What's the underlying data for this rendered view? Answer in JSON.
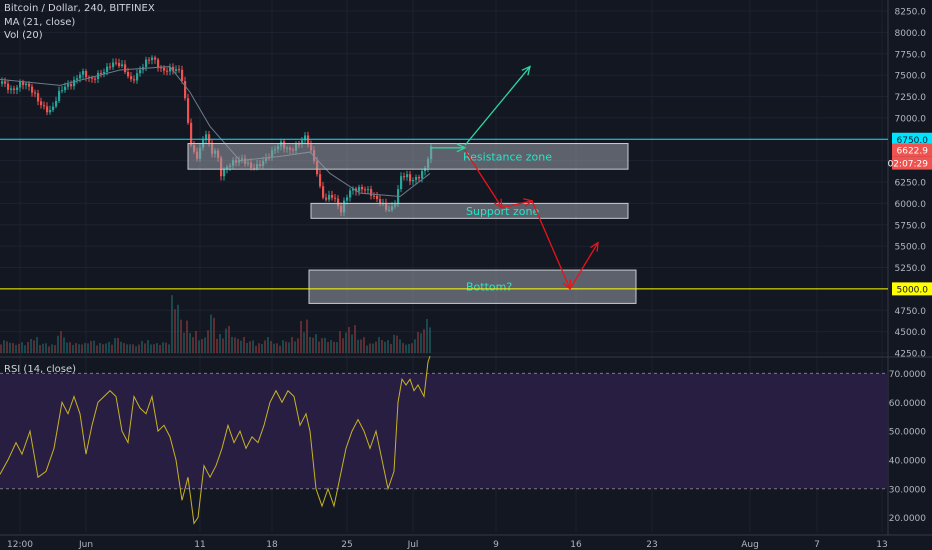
{
  "legend": {
    "symbol": "Bitcoin / Dollar, 240, BITFINEX",
    "ma": "MA (21, close)",
    "vol": "Vol (20)",
    "rsi": "RSI (14, close)"
  },
  "colors": {
    "background": "#131722",
    "up": "#26a69a",
    "down": "#ef5350",
    "resistance_line": "#00e5ff",
    "bottom_line": "#ffff00",
    "zone_fill": "#9a9ea8",
    "zone_text": "#26e6c8",
    "arrow_up": "#2fd6a0",
    "arrow_down": "#e8131b",
    "rsi_line": "#c9b325",
    "rsi_band": "#2a1f45"
  },
  "price_axis": {
    "min": 4250,
    "max": 8250,
    "ticks": [
      "8250.0",
      "8000.0",
      "7750.0",
      "7500.0",
      "7250.0",
      "7000.0",
      "6750.0",
      "6500.0",
      "6250.0",
      "6000.0",
      "5750.0",
      "5500.0",
      "5250.0",
      "5000.0",
      "4750.0",
      "4500.0",
      "4250.0"
    ]
  },
  "price_badges": [
    {
      "text": "6750.0",
      "value": 6750,
      "bg": "#00e5ff",
      "fg": "#131722"
    },
    {
      "text": "6622.9",
      "value": 6622.9,
      "bg": "#ef5350",
      "fg": "#ffffff"
    },
    {
      "text": "02:07:29",
      "value": 6500,
      "bg": "#ef5350",
      "fg": "#ffffff"
    },
    {
      "text": "5000.0",
      "value": 5000,
      "bg": "#ffff00",
      "fg": "#131722"
    }
  ],
  "time_axis": {
    "labels": [
      "12:00",
      "Jun",
      "11",
      "18",
      "25",
      "Jul",
      "9",
      "16",
      "23",
      "Aug",
      "7",
      "13"
    ]
  },
  "rsi_axis": {
    "min": 15,
    "max": 75,
    "ticks": [
      "70.0000",
      "60.0000",
      "50.0000",
      "40.0000",
      "30.0000",
      "20.0000"
    ],
    "overbought": 70,
    "oversold": 30
  },
  "annotations": {
    "resistance": {
      "label": "Resistance zone",
      "low": 6400,
      "high": 6700,
      "level": 6750
    },
    "support": {
      "label": "Support zone",
      "low": 5825,
      "high": 6000
    },
    "bottom": {
      "label": "Bottom?",
      "low": 4830,
      "high": 5220,
      "level": 5000
    }
  },
  "chart_data": {
    "type": "candlestick",
    "title": "Bitcoin / Dollar, 240, BITFINEX",
    "indicators": [
      "MA (21, close)",
      "Vol (20)",
      "RSI (14, close)"
    ],
    "ylim": [
      4250,
      8250
    ],
    "rsi_ylim": [
      15,
      75
    ],
    "price_path": [
      [
        0,
        7400
      ],
      [
        10,
        7350
      ],
      [
        20,
        7420
      ],
      [
        30,
        7300
      ],
      [
        40,
        7180
      ],
      [
        50,
        7080
      ],
      [
        60,
        7300
      ],
      [
        70,
        7420
      ],
      [
        80,
        7550
      ],
      [
        90,
        7400
      ],
      [
        100,
        7550
      ],
      [
        110,
        7650
      ],
      [
        120,
        7580
      ],
      [
        130,
        7450
      ],
      [
        140,
        7600
      ],
      [
        150,
        7680
      ],
      [
        160,
        7580
      ],
      [
        170,
        7600
      ],
      [
        180,
        7500
      ],
      [
        185,
        7100
      ],
      [
        190,
        6700
      ],
      [
        195,
        6550
      ],
      [
        200,
        6700
      ],
      [
        205,
        6820
      ],
      [
        210,
        6550
      ],
      [
        215,
        6600
      ],
      [
        220,
        6350
      ],
      [
        225,
        6450
      ],
      [
        230,
        6500
      ],
      [
        240,
        6480
      ],
      [
        250,
        6420
      ],
      [
        260,
        6500
      ],
      [
        270,
        6550
      ],
      [
        280,
        6700
      ],
      [
        290,
        6650
      ],
      [
        300,
        6700
      ],
      [
        305,
        6750
      ],
      [
        310,
        6600
      ],
      [
        315,
        6450
      ],
      [
        320,
        6150
      ],
      [
        325,
        6050
      ],
      [
        330,
        6080
      ],
      [
        335,
        5980
      ],
      [
        340,
        5900
      ],
      [
        345,
        6100
      ],
      [
        350,
        6200
      ],
      [
        360,
        6150
      ],
      [
        370,
        6100
      ],
      [
        380,
        6050
      ],
      [
        385,
        5950
      ],
      [
        390,
        5900
      ],
      [
        395,
        6000
      ],
      [
        400,
        6300
      ],
      [
        405,
        6350
      ],
      [
        410,
        6300
      ],
      [
        420,
        6320
      ],
      [
        425,
        6400
      ],
      [
        428,
        6550
      ],
      [
        430,
        6622
      ]
    ],
    "ma_path": [
      [
        0,
        7450
      ],
      [
        60,
        7380
      ],
      [
        120,
        7560
      ],
      [
        170,
        7600
      ],
      [
        190,
        7300
      ],
      [
        210,
        6900
      ],
      [
        240,
        6500
      ],
      [
        280,
        6550
      ],
      [
        310,
        6600
      ],
      [
        330,
        6350
      ],
      [
        360,
        6120
      ],
      [
        400,
        6080
      ],
      [
        430,
        6350
      ]
    ],
    "rsi_path": [
      [
        0,
        35
      ],
      [
        8,
        40
      ],
      [
        16,
        46
      ],
      [
        22,
        42
      ],
      [
        30,
        50
      ],
      [
        38,
        34
      ],
      [
        46,
        36
      ],
      [
        54,
        44
      ],
      [
        62,
        60
      ],
      [
        68,
        56
      ],
      [
        74,
        62
      ],
      [
        80,
        56
      ],
      [
        86,
        42
      ],
      [
        92,
        52
      ],
      [
        98,
        60
      ],
      [
        104,
        62
      ],
      [
        110,
        64
      ],
      [
        116,
        62
      ],
      [
        122,
        50
      ],
      [
        128,
        46
      ],
      [
        134,
        62
      ],
      [
        140,
        58
      ],
      [
        146,
        56
      ],
      [
        152,
        62
      ],
      [
        158,
        50
      ],
      [
        164,
        52
      ],
      [
        170,
        48
      ],
      [
        176,
        40
      ],
      [
        182,
        26
      ],
      [
        188,
        34
      ],
      [
        194,
        18
      ],
      [
        198,
        20
      ],
      [
        204,
        38
      ],
      [
        210,
        34
      ],
      [
        216,
        38
      ],
      [
        222,
        44
      ],
      [
        228,
        52
      ],
      [
        234,
        46
      ],
      [
        240,
        50
      ],
      [
        246,
        44
      ],
      [
        252,
        48
      ],
      [
        258,
        46
      ],
      [
        264,
        52
      ],
      [
        270,
        60
      ],
      [
        276,
        64
      ],
      [
        282,
        60
      ],
      [
        288,
        64
      ],
      [
        294,
        62
      ],
      [
        300,
        52
      ],
      [
        306,
        56
      ],
      [
        310,
        50
      ],
      [
        316,
        30
      ],
      [
        322,
        24
      ],
      [
        328,
        30
      ],
      [
        334,
        24
      ],
      [
        340,
        34
      ],
      [
        346,
        44
      ],
      [
        352,
        50
      ],
      [
        358,
        54
      ],
      [
        364,
        50
      ],
      [
        370,
        44
      ],
      [
        376,
        50
      ],
      [
        382,
        40
      ],
      [
        388,
        30
      ],
      [
        394,
        36
      ],
      [
        398,
        60
      ],
      [
        402,
        68
      ],
      [
        406,
        66
      ],
      [
        410,
        68
      ],
      [
        414,
        64
      ],
      [
        418,
        66
      ],
      [
        424,
        62
      ],
      [
        428,
        74
      ],
      [
        430,
        76
      ]
    ],
    "volume_relative": [
      0.15,
      0.1,
      0.12,
      0.2,
      0.1,
      0.08,
      0.3,
      0.12,
      0.1,
      0.15,
      0.1,
      0.12,
      0.2,
      0.1,
      0.08,
      0.15,
      0.1,
      0.12,
      0.9,
      0.5,
      0.3,
      0.2,
      0.6,
      0.25,
      0.4,
      0.2,
      0.15,
      0.1,
      0.2,
      0.1,
      0.15,
      0.2,
      0.5,
      0.25,
      0.2,
      0.15,
      0.3,
      0.4,
      0.2,
      0.1,
      0.2,
      0.15,
      0.25,
      0.1,
      0.3,
      0.5
    ]
  }
}
